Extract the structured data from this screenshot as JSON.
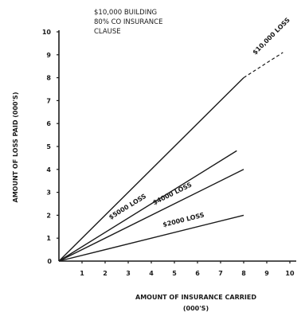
{
  "chart_data": {
    "type": "line",
    "title_lines": [
      "$10,000 BUILDING",
      "80% CO INSURANCE",
      "CLAUSE"
    ],
    "xlabel_lines": [
      "AMOUNT OF INSURANCE CARRIED",
      "(000'S)"
    ],
    "ylabel": "AMOUNT OF LOSS PAID (000'S)",
    "xlim": [
      0,
      10
    ],
    "ylim": [
      0,
      10
    ],
    "x_ticks": [
      "1",
      "2",
      "3",
      "4",
      "5",
      "6",
      "7",
      "8",
      "9",
      "10"
    ],
    "y_ticks": [
      "1",
      "2",
      "3",
      "4",
      "5",
      "6",
      "7",
      "8",
      "9",
      "10"
    ],
    "origin_label": "0",
    "grid": false,
    "legend": "none",
    "series": [
      {
        "name": "$10,000 LOSS",
        "x": [
          0,
          8
        ],
        "y": [
          0,
          8
        ],
        "extension": {
          "x": [
            8,
            9.7
          ],
          "y": [
            8,
            9.1
          ],
          "style": "dashed"
        }
      },
      {
        "name": "$5000 LOSS",
        "x": [
          0,
          8
        ],
        "y": [
          0,
          5
        ],
        "display_range": [
          0,
          7.7
        ]
      },
      {
        "name": "$4000 LOSS",
        "x": [
          0,
          8
        ],
        "y": [
          0,
          4
        ]
      },
      {
        "name": "$2000 LOSS",
        "x": [
          0,
          8
        ],
        "y": [
          0,
          2
        ]
      }
    ],
    "line_labels": [
      {
        "series": 0,
        "at_x": 9.5,
        "offset": 10
      },
      {
        "series": 1,
        "at_x": 3.2,
        "offset": 10
      },
      {
        "series": 2,
        "at_x": 5.1,
        "offset": 10
      },
      {
        "series": 3,
        "at_x": 5.5,
        "offset": 10
      }
    ]
  }
}
